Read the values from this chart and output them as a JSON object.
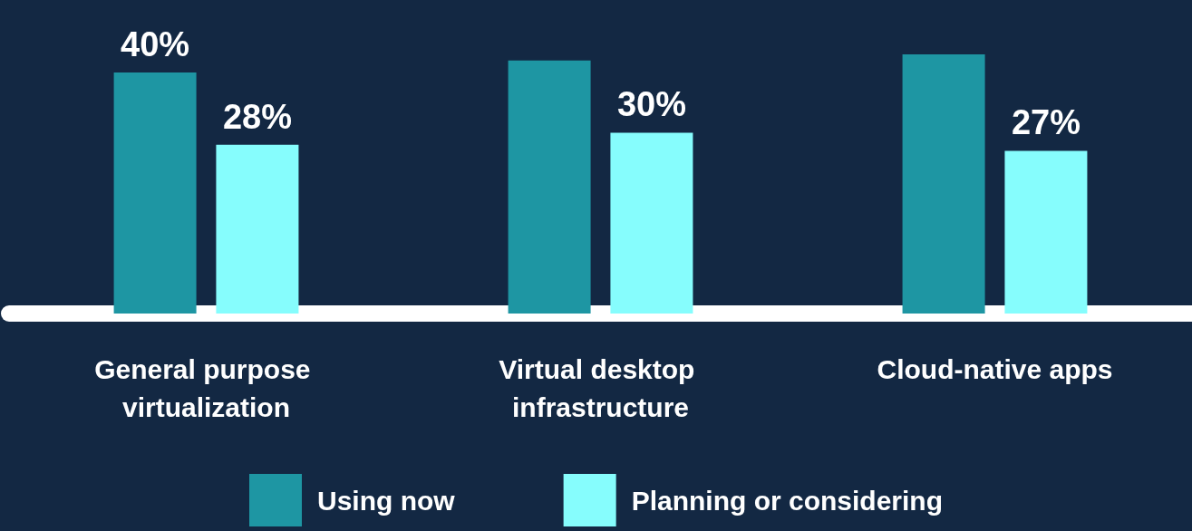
{
  "chart_data": {
    "type": "bar",
    "categories": [
      "General purpose virtualization",
      "Virtual desktop infrastructure",
      "Cloud-native apps"
    ],
    "series": [
      {
        "name": "Using now",
        "color": "#1e96a3",
        "values": [
          40,
          42,
          43
        ],
        "value_labels": [
          "40%",
          null,
          null
        ]
      },
      {
        "name": "Planning or considering",
        "color": "#86fdfd",
        "values": [
          28,
          30,
          27
        ],
        "value_labels": [
          "28%",
          "30%",
          "27%"
        ]
      }
    ],
    "legend": "bottom"
  }
}
